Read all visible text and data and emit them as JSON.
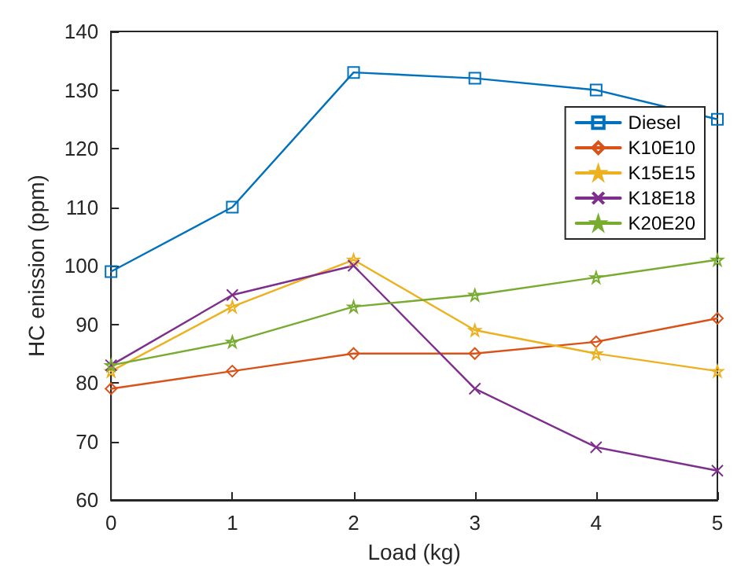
{
  "chart_data": {
    "type": "line",
    "xlabel": "Load (kg)",
    "ylabel": "HC enission (ppm)",
    "x": [
      0,
      1,
      2,
      3,
      4,
      5
    ],
    "series": [
      {
        "name": "Diesel",
        "color": "#0072bd",
        "marker": "square",
        "values": [
          99,
          110,
          133,
          132,
          130,
          125
        ]
      },
      {
        "name": "K10E10",
        "color": "#d95319",
        "marker": "diamond",
        "values": [
          79,
          82,
          85,
          85,
          87,
          91
        ]
      },
      {
        "name": "K15E15",
        "color": "#edb120",
        "marker": "star",
        "values": [
          82,
          93,
          101,
          89,
          85,
          82
        ]
      },
      {
        "name": "K18E18",
        "color": "#7e2f8e",
        "marker": "cross",
        "values": [
          83,
          95,
          100,
          79,
          69,
          65
        ]
      },
      {
        "name": "K20E20",
        "color": "#77ac30",
        "marker": "star",
        "values": [
          83,
          87,
          93,
          95,
          98,
          101
        ]
      }
    ],
    "xlim": [
      0,
      5
    ],
    "xticks": [
      0,
      1,
      2,
      3,
      4,
      5
    ],
    "ylim": [
      60,
      140
    ],
    "yticks": [
      60,
      70,
      80,
      90,
      100,
      110,
      120,
      130,
      140
    ],
    "grid": false,
    "legend": "top right",
    "line_style": "solid"
  }
}
